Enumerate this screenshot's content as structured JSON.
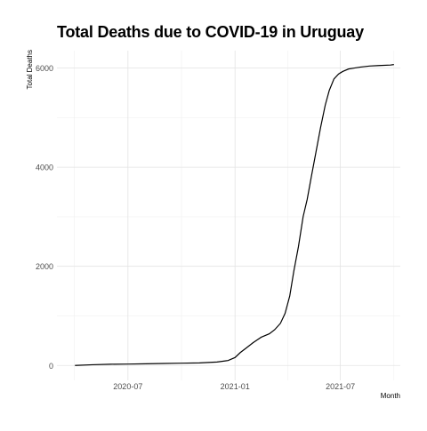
{
  "chart_data": {
    "type": "line",
    "title": "Total Deaths due to COVID-19 in Uruguay",
    "xlabel": "Month",
    "ylabel": "Total Deaths",
    "x_tick_labels": [
      {
        "date": "2020-07-01",
        "label": "2020-07"
      },
      {
        "date": "2021-01-01",
        "label": "2021-01"
      },
      {
        "date": "2021-07-01",
        "label": "2021-07"
      }
    ],
    "y_ticks": [
      0,
      2000,
      4000,
      6000
    ],
    "xlim": [
      "2020-03-01",
      "2021-10-12"
    ],
    "ylim": [
      -300,
      6350
    ],
    "grid": true,
    "legend": "none",
    "series": [
      {
        "x": [
          "2020-04-01",
          "2020-05-01",
          "2020-06-01",
          "2020-07-01",
          "2020-08-01",
          "2020-09-01",
          "2020-10-01",
          "2020-11-01",
          "2020-12-01",
          "2020-12-20",
          "2021-01-01",
          "2021-01-10",
          "2021-01-20",
          "2021-02-01",
          "2021-02-15",
          "2021-03-01",
          "2021-03-10",
          "2021-03-20",
          "2021-03-28",
          "2021-04-05",
          "2021-04-12",
          "2021-04-20",
          "2021-04-28",
          "2021-05-05",
          "2021-05-12",
          "2021-05-20",
          "2021-05-28",
          "2021-06-05",
          "2021-06-12",
          "2021-06-20",
          "2021-06-28",
          "2021-07-05",
          "2021-07-15",
          "2021-07-25",
          "2021-08-05",
          "2021-08-20",
          "2021-09-05",
          "2021-09-25",
          "2021-10-01"
        ],
        "y": [
          0,
          15,
          25,
          28,
          34,
          40,
          46,
          52,
          70,
          100,
          160,
          260,
          350,
          460,
          570,
          640,
          720,
          850,
          1050,
          1400,
          1900,
          2400,
          3000,
          3350,
          3800,
          4300,
          4800,
          5250,
          5550,
          5780,
          5880,
          5930,
          5980,
          6000,
          6020,
          6040,
          6050,
          6060,
          6070
        ]
      }
    ]
  }
}
